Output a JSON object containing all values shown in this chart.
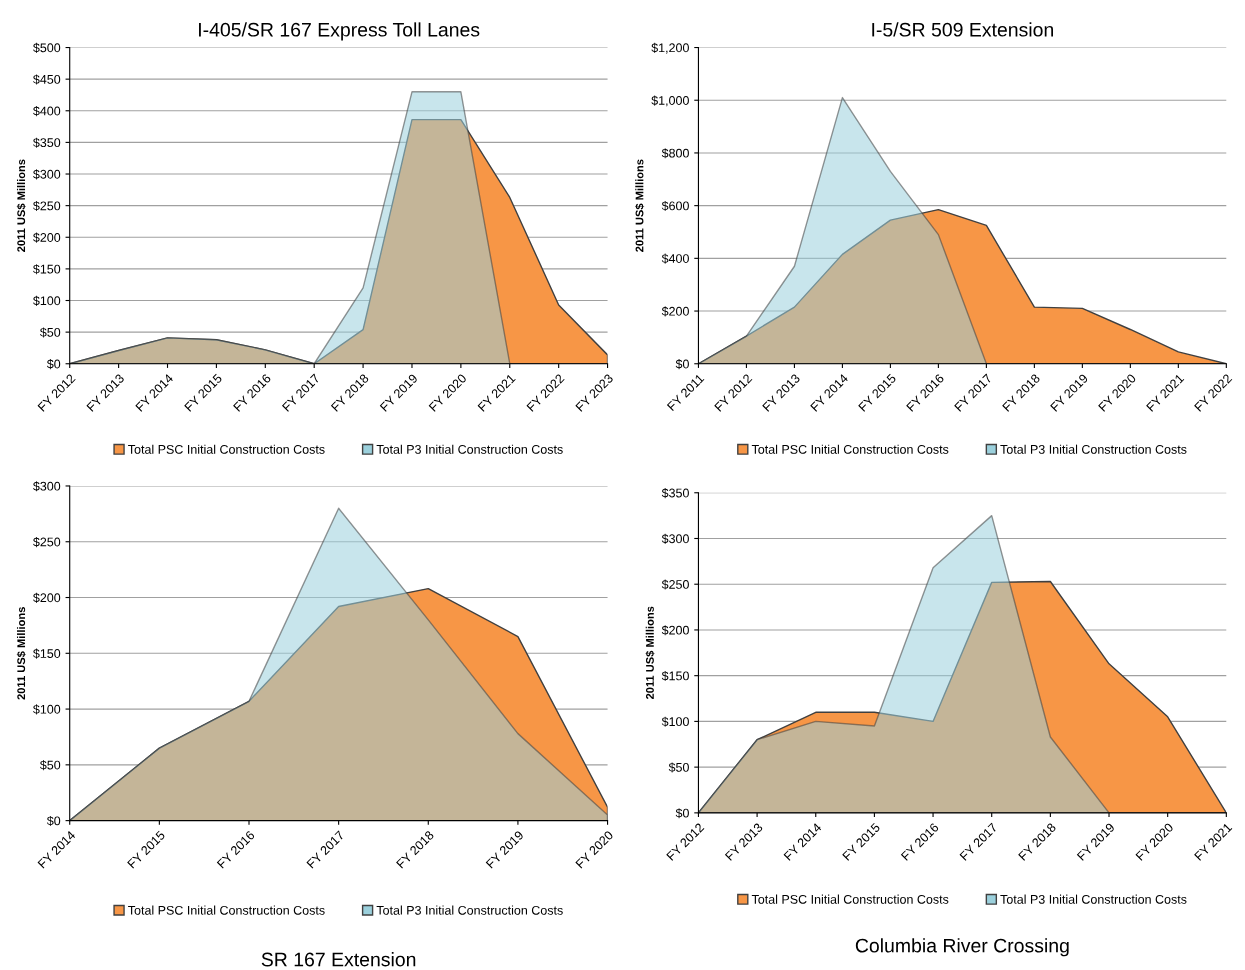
{
  "chart_data": [
    {
      "type": "area",
      "title": "I-405/SR 167 Express Toll Lanes",
      "ylabel": "2011 US$ Millions",
      "categories": [
        "FY 2012",
        "FY 2013",
        "FY 2014",
        "FY 2015",
        "FY 2016",
        "FY 2017",
        "FY 2018",
        "FY 2019",
        "FY 2020",
        "FY 2021",
        "FY 2022",
        "FY 2023"
      ],
      "series": [
        {
          "name": "Total PSC Initial Construction Costs",
          "color": "#f79646",
          "values": [
            0,
            21,
            41,
            38,
            22,
            0,
            54,
            386,
            386,
            263,
            93,
            14
          ]
        },
        {
          "name": "Total P3 Initial Construction Costs",
          "color": "#9bd0dc",
          "values": [
            0,
            21,
            41,
            38,
            22,
            0,
            120,
            430,
            430,
            0,
            0,
            0
          ]
        }
      ],
      "ylim": [
        0,
        500
      ],
      "yticks": [
        {
          "value": 0,
          "label": "$0"
        },
        {
          "value": 50,
          "label": "$50"
        },
        {
          "value": 100,
          "label": "$100"
        },
        {
          "value": 150,
          "label": "$150"
        },
        {
          "value": 200,
          "label": "$200"
        },
        {
          "value": 250,
          "label": "$250"
        },
        {
          "value": 300,
          "label": "$300"
        },
        {
          "value": 350,
          "label": "$350"
        },
        {
          "value": 400,
          "label": "$400"
        },
        {
          "value": 450,
          "label": "$450"
        },
        {
          "value": 500,
          "label": "$500"
        }
      ],
      "grid": "y",
      "legend": "bottom"
    },
    {
      "type": "area",
      "title": "I-5/SR 509 Extension",
      "ylabel": "2011 US$ Millions",
      "categories": [
        "FY 2011",
        "FY 2012",
        "FY 2013",
        "FY 2014",
        "FY 2015",
        "FY 2016",
        "FY 2017",
        "FY 2018",
        "FY 2019",
        "FY 2020",
        "FY 2021",
        "FY 2022"
      ],
      "series": [
        {
          "name": "Total PSC Initial Construction Costs",
          "color": "#f79646",
          "values": [
            0,
            105,
            215,
            415,
            545,
            585,
            525,
            215,
            210,
            130,
            45,
            0
          ]
        },
        {
          "name": "Total P3 Initial Construction Costs",
          "color": "#9bd0dc",
          "values": [
            0,
            105,
            370,
            1010,
            730,
            490,
            0,
            0,
            0,
            0,
            0,
            0
          ]
        }
      ],
      "ylim": [
        0,
        1200
      ],
      "yticks": [
        {
          "value": 0,
          "label": "$0"
        },
        {
          "value": 200,
          "label": "$200"
        },
        {
          "value": 400,
          "label": "$400"
        },
        {
          "value": 600,
          "label": "$600"
        },
        {
          "value": 800,
          "label": "$800"
        },
        {
          "value": 1000,
          "label": "$1,000"
        },
        {
          "value": 1200,
          "label": "$1,200"
        }
      ],
      "grid": "y",
      "legend": "bottom"
    },
    {
      "type": "area",
      "title": "SR 167 Extension",
      "ylabel": "2011 US$ Millions",
      "categories": [
        "FY 2014",
        "FY 2015",
        "FY 2016",
        "FY 2017",
        "FY 2018",
        "FY 2019",
        "FY 2020"
      ],
      "series": [
        {
          "name": "Total PSC Initial Construction Costs",
          "color": "#f79646",
          "values": [
            0,
            65,
            107,
            192,
            208,
            165,
            12
          ]
        },
        {
          "name": "Total P3 Initial Construction Costs",
          "color": "#9bd0dc",
          "values": [
            0,
            65,
            107,
            280,
            180,
            78,
            5
          ]
        }
      ],
      "ylim": [
        0,
        300
      ],
      "yticks": [
        {
          "value": 0,
          "label": "$0"
        },
        {
          "value": 50,
          "label": "$50"
        },
        {
          "value": 100,
          "label": "$100"
        },
        {
          "value": 150,
          "label": "$150"
        },
        {
          "value": 200,
          "label": "$200"
        },
        {
          "value": 250,
          "label": "$250"
        },
        {
          "value": 300,
          "label": "$300"
        }
      ],
      "grid": "y",
      "legend": "bottom"
    },
    {
      "type": "area",
      "title": "Columbia River Crossing",
      "ylabel": "2011 US$ Millions",
      "categories": [
        "FY 2012",
        "FY 2013",
        "FY 2014",
        "FY 2015",
        "FY 2016",
        "FY 2017",
        "FY 2018",
        "FY 2019",
        "FY 2020",
        "FY 2021"
      ],
      "series": [
        {
          "name": "Total PSC Initial Construction Costs",
          "color": "#f79646",
          "values": [
            0,
            80,
            110,
            110,
            100,
            252,
            253,
            163,
            105,
            0
          ]
        },
        {
          "name": "Total P3 Initial Construction Costs",
          "color": "#9bd0dc",
          "values": [
            0,
            80,
            100,
            95,
            268,
            325,
            83,
            0,
            0,
            0
          ]
        }
      ],
      "ylim": [
        0,
        350
      ],
      "yticks": [
        {
          "value": 0,
          "label": "$0"
        },
        {
          "value": 50,
          "label": "$50"
        },
        {
          "value": 100,
          "label": "$100"
        },
        {
          "value": 150,
          "label": "$150"
        },
        {
          "value": 200,
          "label": "$200"
        },
        {
          "value": 250,
          "label": "$250"
        },
        {
          "value": 300,
          "label": "$300"
        },
        {
          "value": 350,
          "label": "$350"
        }
      ],
      "grid": "y",
      "legend": "bottom"
    }
  ]
}
